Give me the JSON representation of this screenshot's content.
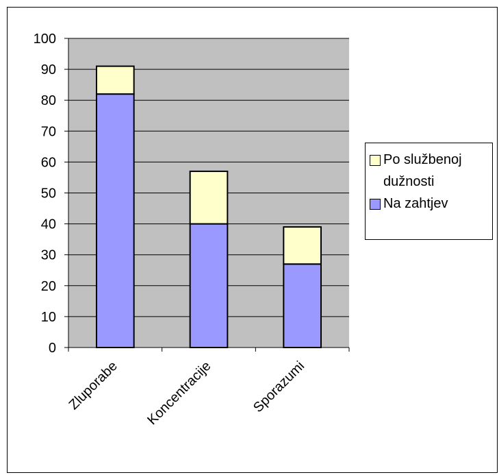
{
  "chart_data": {
    "type": "stacked_bar",
    "categories": [
      "Zluporabe",
      "Koncentracije",
      "Sporazumi"
    ],
    "series": [
      {
        "name": "Na zahtjev",
        "color": "#9999ff",
        "values": [
          82,
          40,
          27
        ]
      },
      {
        "name": "Po službenoj dužnosti",
        "color": "#ffffcc",
        "values": [
          9,
          17,
          12
        ]
      }
    ],
    "ylim": [
      0,
      100
    ],
    "yticks": [
      0,
      10,
      20,
      30,
      40,
      50,
      60,
      70,
      80,
      90,
      100
    ],
    "grid": true,
    "legend": "right",
    "plot_background": "#c0c0c0"
  }
}
